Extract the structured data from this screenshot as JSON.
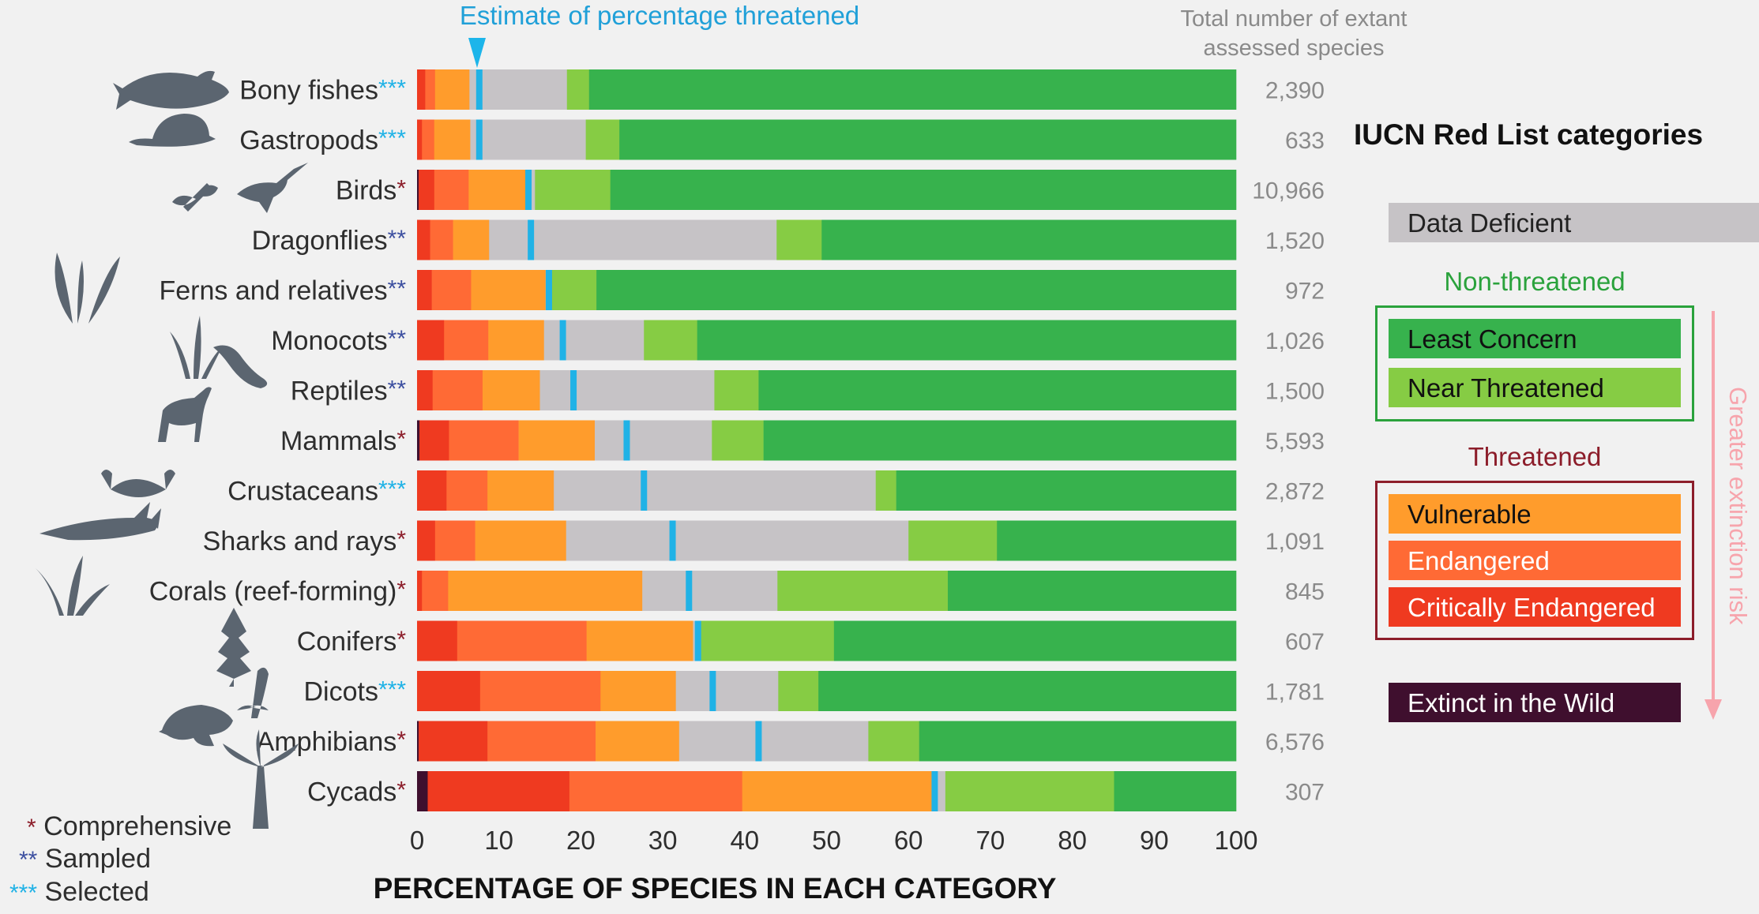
{
  "chart_data": {
    "type": "bar",
    "orientation": "horizontal",
    "stacked": true,
    "title_marker_label": "Estimate of percentage threatened",
    "xlabel": "PERCENTAGE  OF SPECIES IN EACH CATEGORY",
    "xlim": [
      0,
      100
    ],
    "xticks": [
      "0",
      "10",
      "20",
      "30",
      "40",
      "50",
      "60",
      "70",
      "80",
      "90",
      "100"
    ],
    "total_header": "Total number of extant assessed species",
    "category_order": [
      "Extinct in the Wild",
      "Critically Endangered",
      "Endangered",
      "Vulnerable",
      "Data Deficient",
      "Near Threatened",
      "Least Concern"
    ],
    "colors": {
      "Extinct in the Wild": "#3f0f2e",
      "Critically Endangered": "#ef3a20",
      "Endangered": "#ff6a35",
      "Vulnerable": "#ff9c2c",
      "Data Deficient": "#c6c3c6",
      "Near Threatened": "#86cc44",
      "Least Concern": "#37b24d",
      "estimate_marker": "#20b2e6"
    },
    "groups": [
      {
        "label": "Bony fishes",
        "stars": "***",
        "total": "2,390",
        "estimate": 7.6,
        "values": [
          0.0,
          1.0,
          1.2,
          4.2,
          11.9,
          2.7,
          79.0
        ]
      },
      {
        "label": "Gastropods",
        "stars": "***",
        "total": "633",
        "estimate": 7.6,
        "values": [
          0.0,
          0.6,
          1.5,
          4.4,
          14.1,
          4.1,
          75.3
        ]
      },
      {
        "label": "Birds",
        "stars": "*",
        "total": "10,966",
        "estimate": 13.6,
        "values": [
          0.2,
          1.9,
          4.2,
          7.3,
          0.8,
          9.2,
          76.4
        ]
      },
      {
        "label": "Dragonflies",
        "stars": "**",
        "total": "1,520",
        "estimate": 13.9,
        "values": [
          0.0,
          1.6,
          2.8,
          4.4,
          35.1,
          5.5,
          50.6
        ]
      },
      {
        "label": "Ferns and relatives",
        "stars": "**",
        "total": "972",
        "estimate": 16.1,
        "values": [
          0.0,
          1.8,
          4.8,
          9.1,
          0.7,
          5.5,
          78.1
        ]
      },
      {
        "label": "Monocots",
        "stars": "**",
        "total": "1,026",
        "estimate": 17.8,
        "values": [
          0.0,
          3.3,
          5.4,
          6.8,
          12.2,
          6.5,
          65.8
        ]
      },
      {
        "label": "Reptiles",
        "stars": "**",
        "total": "1,500",
        "estimate": 19.1,
        "values": [
          0.0,
          1.9,
          6.1,
          7.0,
          21.3,
          5.4,
          58.3
        ]
      },
      {
        "label": "Mammals",
        "stars": "*",
        "total": "5,593",
        "estimate": 25.6,
        "values": [
          0.3,
          3.6,
          8.5,
          9.3,
          14.3,
          6.3,
          57.7
        ]
      },
      {
        "label": "Crustaceans",
        "stars": "***",
        "total": "2,872",
        "estimate": 27.7,
        "values": [
          0.0,
          3.6,
          5.0,
          8.1,
          39.3,
          2.5,
          41.5
        ]
      },
      {
        "label": "Sharks and rays",
        "stars": "*",
        "total": "1,091",
        "estimate": 31.2,
        "values": [
          0.0,
          2.2,
          4.9,
          11.1,
          41.8,
          10.8,
          29.2
        ]
      },
      {
        "label": "Corals (reef-forming)",
        "stars": "*",
        "total": "845",
        "estimate": 33.2,
        "values": [
          0.0,
          0.6,
          3.2,
          23.7,
          16.5,
          20.8,
          35.2
        ]
      },
      {
        "label": "Conifers",
        "stars": "*",
        "total": "607",
        "estimate": 34.3,
        "values": [
          0.0,
          4.9,
          15.8,
          13.0,
          0.9,
          16.3,
          49.1
        ]
      },
      {
        "label": "Dicots",
        "stars": "***",
        "total": "1,781",
        "estimate": 36.1,
        "values": [
          0.0,
          7.7,
          14.7,
          9.2,
          12.5,
          4.9,
          51.0
        ]
      },
      {
        "label": "Amphibians",
        "stars": "*",
        "total": "6,576",
        "estimate": 41.7,
        "values": [
          0.2,
          8.4,
          13.2,
          10.2,
          23.1,
          6.2,
          38.7
        ]
      },
      {
        "label": "Cycads",
        "stars": "*",
        "total": "307",
        "estimate": 63.2,
        "values": [
          1.3,
          17.3,
          21.1,
          23.5,
          1.3,
          20.6,
          14.9
        ]
      }
    ]
  },
  "legend": {
    "title": "IUCN Red List categories",
    "data_deficient": "Data Deficient",
    "non_threatened_title": "Non-threatened",
    "least_concern": "Least Concern",
    "near_threatened": "Near Threatened",
    "threatened_title": "Threatened",
    "vulnerable": "Vulnerable",
    "endangered": "Endangered",
    "critically_endangered": "Critically Endangered",
    "extinct_in_wild": "Extinct in the Wild",
    "risk_arrow_label": "Greater extinction risk",
    "green_text": "#2aa23c",
    "red_text": "#8c1d2a",
    "arrow_color": "#f7a4ac"
  },
  "key": {
    "comprehensive": {
      "stars": "*",
      "label": "Comprehensive",
      "color": "#8c1d2a"
    },
    "sampled": {
      "stars": "**",
      "label": "Sampled",
      "color": "#3c4fa0"
    },
    "selected": {
      "stars": "***",
      "label": "Selected",
      "color": "#20b2e6"
    }
  },
  "star_colors": {
    "*": "#8c1d2a",
    "**": "#3c4fa0",
    "***": "#20b2e6"
  }
}
